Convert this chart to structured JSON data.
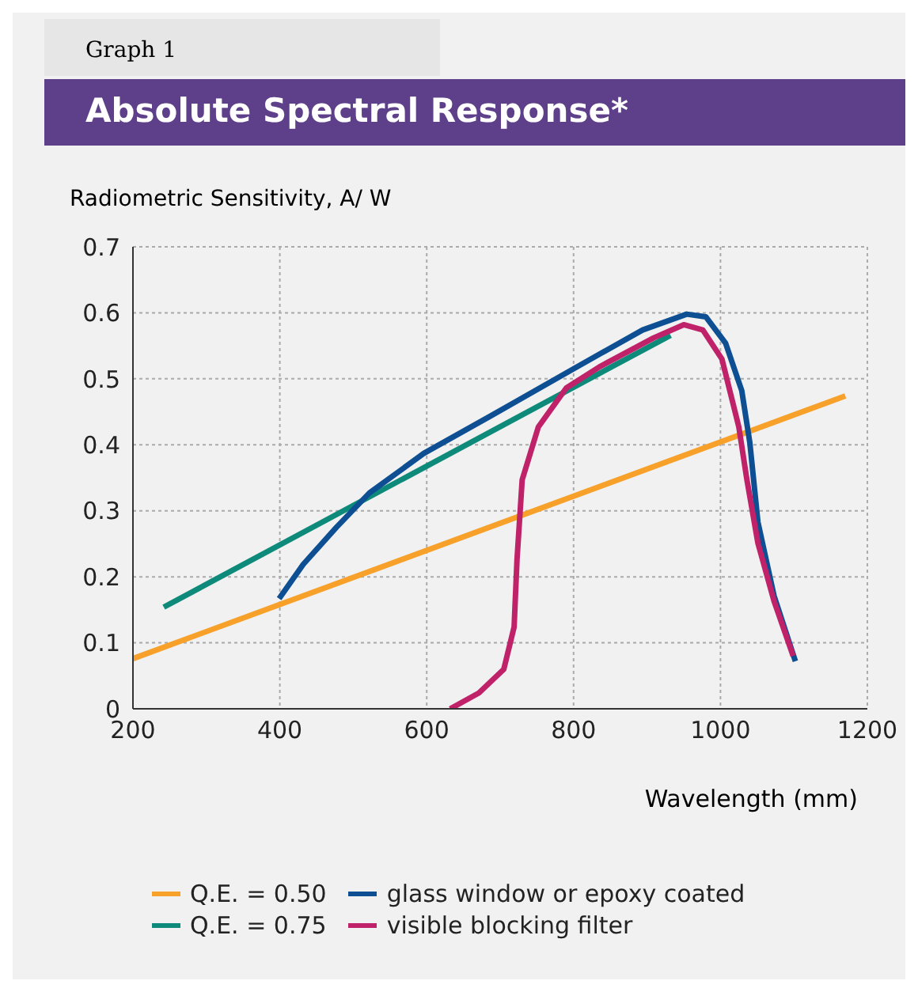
{
  "chart_data": {
    "type": "line",
    "title": "Absolute Spectral Response*",
    "subtitle": "Graph 1",
    "ylabel": "Radiometric Sensitivity, A/ W",
    "xlabel": "Wavelength (mm)",
    "xlim": [
      200,
      1200
    ],
    "xticks": [
      200,
      400,
      600,
      800,
      1000,
      1200
    ],
    "ylim": [
      0,
      0.7
    ],
    "yticks": [
      0,
      0.1,
      0.2,
      0.3,
      0.4,
      0.5,
      0.6,
      0.7
    ],
    "grid": true,
    "legend": "bottom",
    "marker": "none",
    "line_style": "solid",
    "series": [
      {
        "name": "Q.E. = 0.50",
        "color": "#f7a12b",
        "x": [
          200,
          1170
        ],
        "values": [
          0.076,
          0.474
        ]
      },
      {
        "name": "Q.E. = 0.75",
        "color": "#0e8a7a",
        "x": [
          242,
          932
        ],
        "values": [
          0.154,
          0.566
        ]
      },
      {
        "name": "glass window or epoxy coated",
        "color": "#0d4f92",
        "x": [
          399,
          432,
          477,
          522,
          596,
          686,
          798,
          894,
          954,
          980,
          1007,
          1029,
          1040,
          1051,
          1073,
          1102
        ],
        "values": [
          0.167,
          0.219,
          0.275,
          0.327,
          0.387,
          0.443,
          0.514,
          0.574,
          0.598,
          0.594,
          0.554,
          0.482,
          0.403,
          0.283,
          0.171,
          0.072
        ]
      },
      {
        "name": "visible blocking filter",
        "color": "#c0226a",
        "x": [
          632,
          671,
          705,
          719,
          723,
          730,
          752,
          790,
          835,
          909,
          950,
          976,
          1002,
          1025,
          1036,
          1051,
          1073,
          1099
        ],
        "values": [
          0,
          0.024,
          0.06,
          0.124,
          0.227,
          0.347,
          0.427,
          0.486,
          0.518,
          0.562,
          0.582,
          0.574,
          0.53,
          0.427,
          0.347,
          0.251,
          0.163,
          0.08
        ]
      }
    ]
  }
}
